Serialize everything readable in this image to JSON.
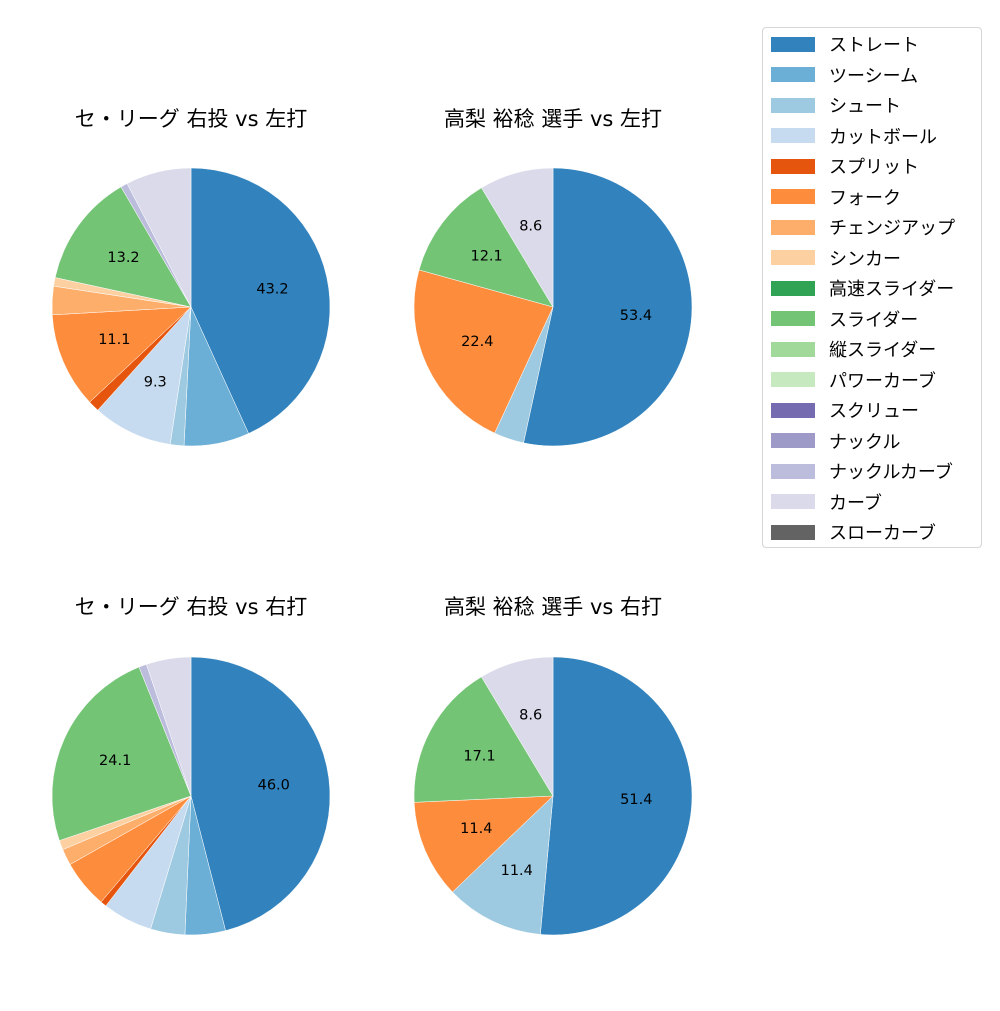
{
  "legend": {
    "items": [
      {
        "label": "ストレート",
        "color": "#3182bd"
      },
      {
        "label": "ツーシーム",
        "color": "#6baed6"
      },
      {
        "label": "シュート",
        "color": "#9ecae1"
      },
      {
        "label": "カットボール",
        "color": "#c6dbef"
      },
      {
        "label": "スプリット",
        "color": "#e6550d"
      },
      {
        "label": "フォーク",
        "color": "#fd8d3c"
      },
      {
        "label": "チェンジアップ",
        "color": "#fdae6b"
      },
      {
        "label": "シンカー",
        "color": "#fdd0a2"
      },
      {
        "label": "高速スライダー",
        "color": "#31a354"
      },
      {
        "label": "スライダー",
        "color": "#74c476"
      },
      {
        "label": "縦スライダー",
        "color": "#a1d99b"
      },
      {
        "label": "パワーカーブ",
        "color": "#c7e9c0"
      },
      {
        "label": "スクリュー",
        "color": "#756bb1"
      },
      {
        "label": "ナックル",
        "color": "#9e9ac8"
      },
      {
        "label": "ナックルカーブ",
        "color": "#bcbddc"
      },
      {
        "label": "カーブ",
        "color": "#dadaeb"
      },
      {
        "label": "スローカーブ",
        "color": "#636363"
      }
    ]
  },
  "chart_data": [
    {
      "type": "pie",
      "title": "セ・リーグ 右投 vs 左打",
      "start_angle": 90,
      "direction": "clockwise",
      "label_threshold": 5,
      "slices": [
        {
          "name": "ストレート",
          "value": 43.2,
          "label": "43.2"
        },
        {
          "name": "ツーシーム",
          "value": 7.6,
          "label": ""
        },
        {
          "name": "シュート",
          "value": 1.6,
          "label": ""
        },
        {
          "name": "カットボール",
          "value": 9.3,
          "label": "9.3"
        },
        {
          "name": "スプリット",
          "value": 1.3,
          "label": ""
        },
        {
          "name": "フォーク",
          "value": 11.1,
          "label": "11.1"
        },
        {
          "name": "チェンジアップ",
          "value": 3.3,
          "label": ""
        },
        {
          "name": "シンカー",
          "value": 1.0,
          "label": ""
        },
        {
          "name": "スライダー",
          "value": 13.2,
          "label": "13.2"
        },
        {
          "name": "ナックルカーブ",
          "value": 0.8,
          "label": ""
        },
        {
          "name": "カーブ",
          "value": 7.6,
          "label": ""
        }
      ]
    },
    {
      "type": "pie",
      "title": "高梨 裕稔 選手 vs 左打",
      "start_angle": 90,
      "direction": "clockwise",
      "label_threshold": 5,
      "slices": [
        {
          "name": "ストレート",
          "value": 53.4,
          "label": "53.4"
        },
        {
          "name": "シュート",
          "value": 3.5,
          "label": ""
        },
        {
          "name": "フォーク",
          "value": 22.4,
          "label": "22.4"
        },
        {
          "name": "スライダー",
          "value": 12.1,
          "label": "12.1"
        },
        {
          "name": "カーブ",
          "value": 8.6,
          "label": "8.6"
        }
      ]
    },
    {
      "type": "pie",
      "title": "セ・リーグ 右投 vs 右打",
      "start_angle": 90,
      "direction": "clockwise",
      "label_threshold": 5,
      "slices": [
        {
          "name": "ストレート",
          "value": 46.0,
          "label": "46.0"
        },
        {
          "name": "ツーシーム",
          "value": 4.7,
          "label": ""
        },
        {
          "name": "シュート",
          "value": 4.0,
          "label": ""
        },
        {
          "name": "カットボール",
          "value": 5.8,
          "label": ""
        },
        {
          "name": "スプリット",
          "value": 0.7,
          "label": ""
        },
        {
          "name": "フォーク",
          "value": 5.6,
          "label": ""
        },
        {
          "name": "チェンジアップ",
          "value": 1.9,
          "label": ""
        },
        {
          "name": "シンカー",
          "value": 1.1,
          "label": ""
        },
        {
          "name": "スライダー",
          "value": 24.1,
          "label": "24.1"
        },
        {
          "name": "ナックルカーブ",
          "value": 0.9,
          "label": ""
        },
        {
          "name": "カーブ",
          "value": 5.2,
          "label": ""
        }
      ]
    },
    {
      "type": "pie",
      "title": "高梨 裕稔 選手 vs 右打",
      "start_angle": 90,
      "direction": "clockwise",
      "label_threshold": 5,
      "slices": [
        {
          "name": "ストレート",
          "value": 51.4,
          "label": "51.4"
        },
        {
          "name": "シュート",
          "value": 11.4,
          "label": "11.4"
        },
        {
          "name": "フォーク",
          "value": 11.4,
          "label": "11.4"
        },
        {
          "name": "スライダー",
          "value": 17.1,
          "label": "17.1"
        },
        {
          "name": "カーブ",
          "value": 8.6,
          "label": "8.6"
        }
      ]
    }
  ]
}
